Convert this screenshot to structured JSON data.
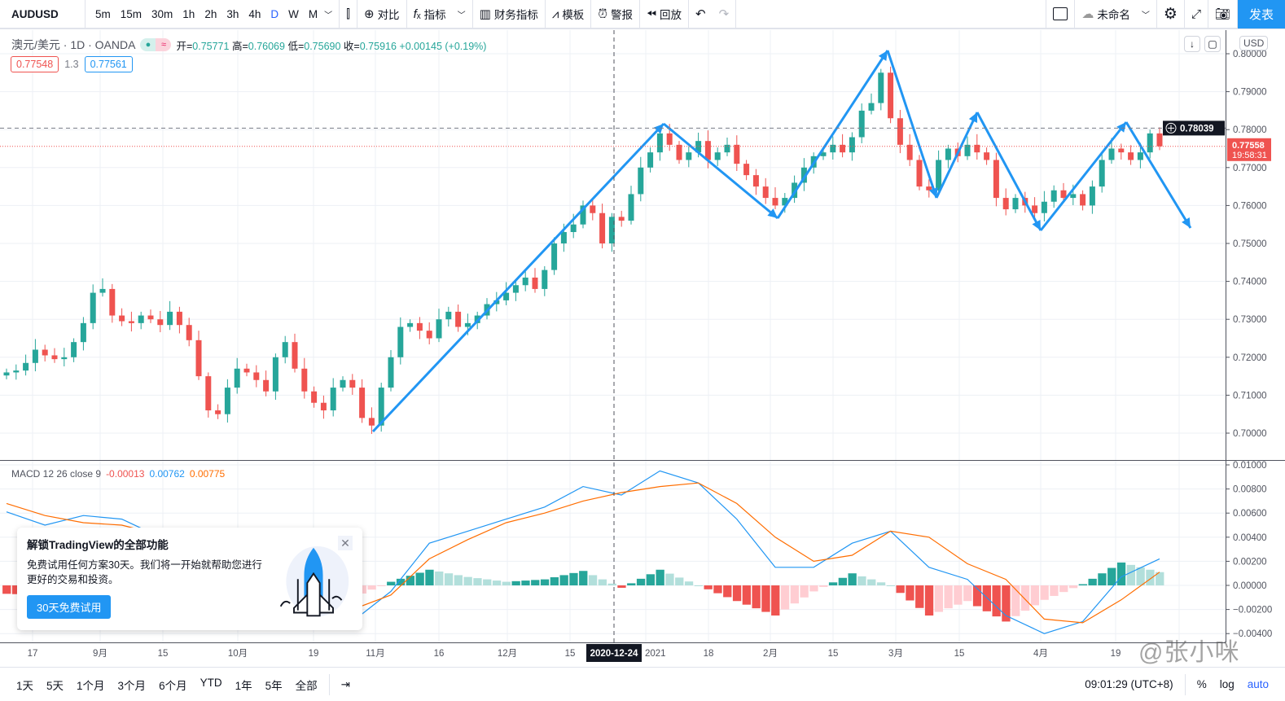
{
  "toolbar": {
    "symbol": "AUDUSD",
    "intervals": [
      "5m",
      "15m",
      "30m",
      "1h",
      "2h",
      "3h",
      "4h",
      "D",
      "W",
      "M"
    ],
    "active_interval": "D",
    "compare": "对比",
    "indicators": "指标",
    "financials": "财务指标",
    "templates": "模板",
    "alerts": "警报",
    "replay": "回放",
    "layout_name": "未命名",
    "publish": "发表"
  },
  "legend": {
    "title": "澳元/美元 · 1D · OANDA",
    "open_label": "开=",
    "open": "0.75771",
    "high_label": "高=",
    "high": "0.76069",
    "low_label": "低=",
    "low": "0.75690",
    "close_label": "收=",
    "close": "0.75916",
    "change": "+0.00145 (+0.19%)",
    "bid": "0.77548",
    "spread": "1.3",
    "ask": "0.77561"
  },
  "price_axis": {
    "currency": "USD",
    "crosshair_price": "0.78039",
    "last_price": "0.77558",
    "countdown": "19:58:31"
  },
  "macd_legend": {
    "label": "MACD 12 26 close 9",
    "hist": "-0.00013",
    "macd": "0.00762",
    "signal": "0.00775"
  },
  "crosshair_date": "2020-12-24",
  "colors": {
    "up": "#26a69a",
    "down": "#ef5350",
    "macd": "#2196f3",
    "signal": "#ff6d00",
    "accent": "#2196f3"
  },
  "chart_data": [
    {
      "type": "candlestick",
      "title": "AUDUSD 1D",
      "ylim": [
        0.695,
        0.805
      ],
      "yticks": [
        "0.80000",
        "0.79000",
        "0.78000",
        "0.77000",
        "0.76000",
        "0.75000",
        "0.74000",
        "0.73000",
        "0.72000",
        "0.71000",
        "0.70000"
      ],
      "xticks": [
        "17",
        "9月",
        "15",
        "10月",
        "19",
        "11月",
        "16",
        "12月",
        "15",
        "2021",
        "18",
        "2月",
        "15",
        "3月",
        "15",
        "4月",
        "19"
      ],
      "closes": [
        0.716,
        0.7165,
        0.7185,
        0.722,
        0.7205,
        0.7195,
        0.72,
        0.724,
        0.729,
        0.737,
        0.738,
        0.731,
        0.7295,
        0.729,
        0.731,
        0.73,
        0.7285,
        0.732,
        0.7285,
        0.7245,
        0.715,
        0.706,
        0.705,
        0.712,
        0.717,
        0.716,
        0.714,
        0.711,
        0.72,
        0.724,
        0.717,
        0.711,
        0.708,
        0.706,
        0.712,
        0.714,
        0.712,
        0.704,
        0.702,
        0.712,
        0.72,
        0.728,
        0.729,
        0.727,
        0.725,
        0.73,
        0.732,
        0.728,
        0.729,
        0.731,
        0.734,
        0.735,
        0.737,
        0.739,
        0.741,
        0.738,
        0.743,
        0.75,
        0.753,
        0.755,
        0.76,
        0.758,
        0.75,
        0.757,
        0.756,
        0.763,
        0.77,
        0.774,
        0.779,
        0.776,
        0.772,
        0.774,
        0.777,
        0.772,
        0.774,
        0.776,
        0.771,
        0.768,
        0.765,
        0.762,
        0.76,
        0.762,
        0.766,
        0.77,
        0.773,
        0.774,
        0.776,
        0.774,
        0.778,
        0.785,
        0.787,
        0.795,
        0.783,
        0.776,
        0.772,
        0.765,
        0.764,
        0.772,
        0.775,
        0.773,
        0.776,
        0.774,
        0.772,
        0.762,
        0.759,
        0.762,
        0.76,
        0.758,
        0.761,
        0.764,
        0.762,
        0.763,
        0.76,
        0.765,
        0.772,
        0.775,
        0.774,
        0.772,
        0.774,
        0.779,
        0.7756
      ]
    },
    {
      "type": "line",
      "title": "MACD 12 26 close 9",
      "ylim": [
        -0.0045,
        0.0102
      ],
      "yticks": [
        "0.01000",
        "0.00800",
        "0.00600",
        "0.00400",
        "0.00200",
        "0.00000",
        "−0.00200",
        "−0.00400"
      ],
      "sample_every_n_bars": 4,
      "series": [
        {
          "name": "MACD",
          "values": [
            0.0061,
            0.005,
            0.0058,
            0.0055,
            0.004,
            0.001,
            -0.001,
            -0.0015,
            -0.0025,
            -0.003,
            -0.0005,
            0.0035,
            0.0045,
            0.0055,
            0.0065,
            0.0082,
            0.0075,
            0.0095,
            0.0085,
            0.0055,
            0.0015,
            0.0015,
            0.0035,
            0.0045,
            0.0015,
            0.0005,
            -0.0025,
            -0.004,
            -0.003,
            0.0007,
            0.0022
          ]
        },
        {
          "name": "Signal",
          "values": [
            0.0068,
            0.0058,
            0.0052,
            0.005,
            0.0042,
            0.0025,
            0.0008,
            -0.0002,
            -0.0012,
            -0.002,
            -0.0008,
            0.0022,
            0.0038,
            0.0052,
            0.006,
            0.007,
            0.0077,
            0.0082,
            0.0085,
            0.0068,
            0.004,
            0.002,
            0.0025,
            0.0045,
            0.004,
            0.0018,
            0.0005,
            -0.0028,
            -0.0031,
            -0.0012,
            0.0011
          ]
        }
      ]
    }
  ],
  "popup": {
    "title": "解锁TradingView的全部功能",
    "body": "免费试用任何方案30天。我们将一开始就帮助您进行更好的交易和投资。",
    "cta": "30天免费试用"
  },
  "bottombar": {
    "ranges": [
      "1天",
      "5天",
      "1个月",
      "3个月",
      "6个月",
      "YTD",
      "1年",
      "5年",
      "全部"
    ],
    "time": "09:01:29 (UTC+8)",
    "percent": "%",
    "log": "log",
    "auto": "auto"
  },
  "watermark": "@张小咪"
}
